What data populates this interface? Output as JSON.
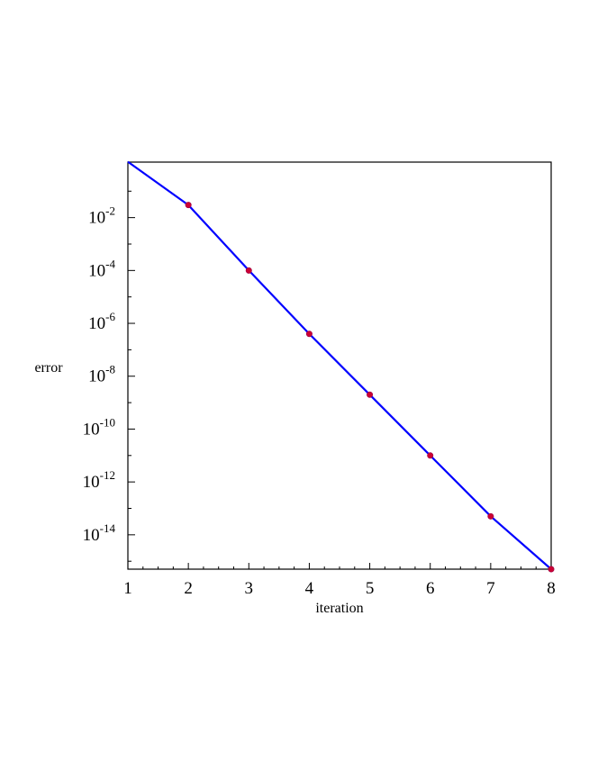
{
  "chart_data": {
    "type": "line",
    "title": "",
    "xlabel": "iteration",
    "ylabel": "error",
    "x_ticks": [
      "1",
      "2",
      "3",
      "4",
      "5",
      "6",
      "7",
      "8"
    ],
    "y_ticks": [
      {
        "value": -2,
        "base": "10",
        "exp": "-2"
      },
      {
        "value": -4,
        "base": "10",
        "exp": "-4"
      },
      {
        "value": -6,
        "base": "10",
        "exp": "-6"
      },
      {
        "value": -8,
        "base": "10",
        "exp": "-8"
      },
      {
        "value": -10,
        "base": "10",
        "exp": "-10"
      },
      {
        "value": -12,
        "base": "10",
        "exp": "-12"
      },
      {
        "value": -14,
        "base": "10",
        "exp": "-14"
      }
    ],
    "y_scale": "log",
    "xlim": [
      1,
      8
    ],
    "ylim_log10": [
      0.1,
      -15.3
    ],
    "grid": false,
    "series": [
      {
        "color": "#0000ff",
        "marker_color": "#cc0033",
        "x": [
          1,
          2,
          3,
          4,
          5,
          6,
          7,
          8
        ],
        "y": [
          1.3,
          0.03,
          0.0001,
          4e-07,
          2e-09,
          1e-11,
          5e-14,
          5e-16
        ],
        "markers_on": [
          2,
          3,
          4,
          5,
          6,
          7,
          8
        ]
      }
    ]
  }
}
